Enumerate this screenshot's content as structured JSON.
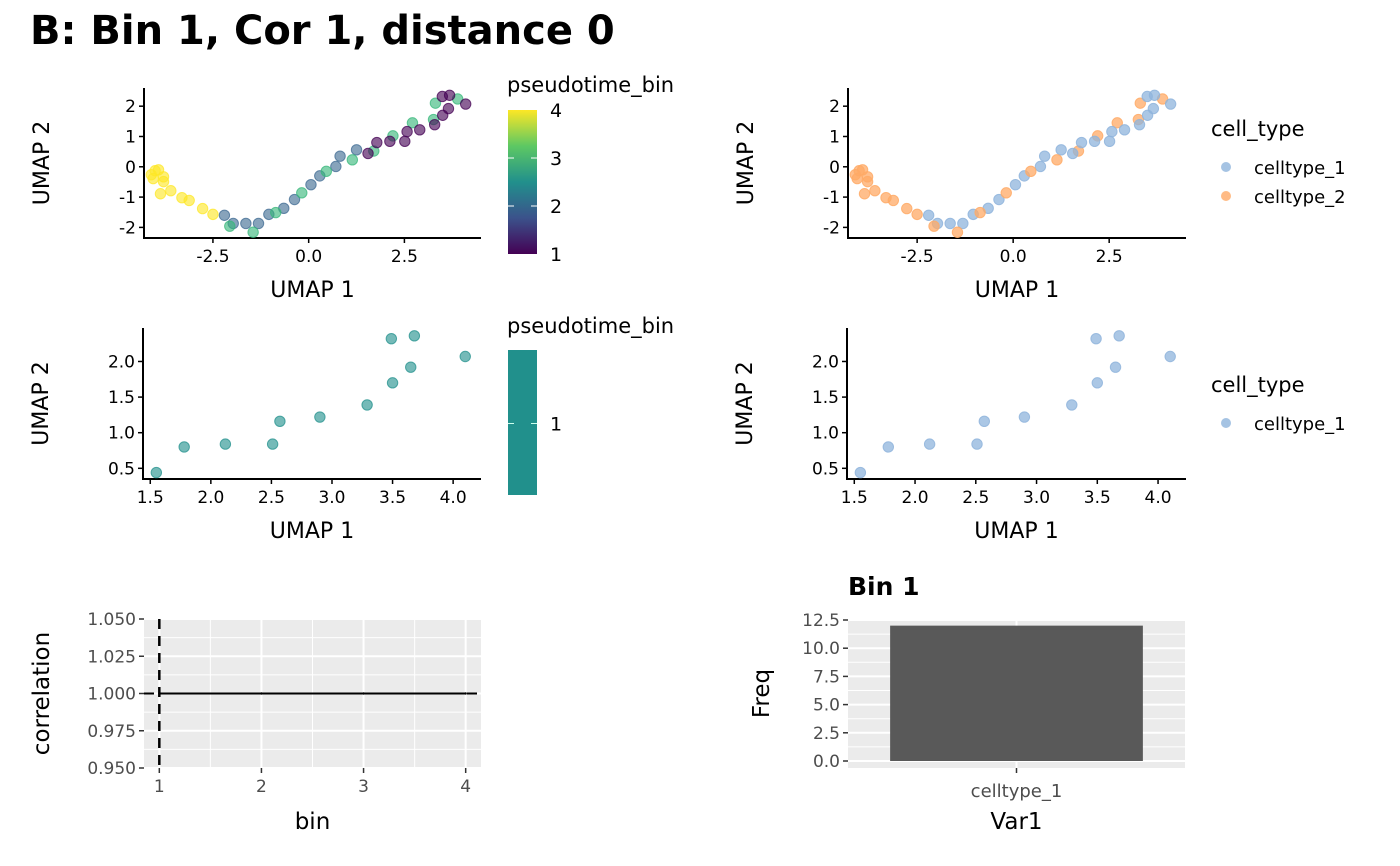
{
  "page_title": "B: Bin 1, Cor 1, distance 0",
  "colors": {
    "viridis": [
      "#440154",
      "#3B528B",
      "#21908C",
      "#5DC863",
      "#FDE725"
    ],
    "bin_colors": {
      "1": "#440154",
      "2": "#3E6A92",
      "3": "#35B779",
      "4": "#FDE725"
    },
    "celltype_1": "#8FB4DC",
    "celltype_2": "#FFAA66",
    "single_bin_fill": "#21908C",
    "bar_fill": "#595959",
    "panel_bg": "#EBEBEB"
  },
  "chart_data": [
    {
      "id": "umap-pseudotime-all",
      "type": "scatter",
      "title": "",
      "xlabel": "UMAP 1",
      "ylabel": "UMAP 2",
      "xlim": [
        -4.3,
        4.5
      ],
      "ylim": [
        -2.35,
        2.6
      ],
      "xticks": [
        -2.5,
        0.0,
        2.5
      ],
      "xtick_labels": [
        "-2.5",
        "0.0",
        "2.5"
      ],
      "yticks": [
        -2,
        -1,
        0,
        1,
        2
      ],
      "ytick_labels": [
        "-2",
        "-1",
        "0",
        "1",
        "2"
      ],
      "grid": false,
      "color_by": "pseudotime_bin",
      "legend": {
        "title": "pseudotime_bin",
        "type": "colorbar",
        "range": [
          1,
          4
        ],
        "ticks": [
          "1",
          "2",
          "3",
          "4"
        ],
        "placement": "right"
      },
      "points": [
        {
          "x": -4.11,
          "y": -0.26,
          "bin": 4,
          "cell_type": "celltype_2"
        },
        {
          "x": -4.01,
          "y": -0.13,
          "bin": 4,
          "cell_type": "celltype_2"
        },
        {
          "x": -3.92,
          "y": -0.1,
          "bin": 4,
          "cell_type": "celltype_2"
        },
        {
          "x": -4.06,
          "y": -0.39,
          "bin": 4,
          "cell_type": "celltype_2"
        },
        {
          "x": -3.79,
          "y": -0.33,
          "bin": 4,
          "cell_type": "celltype_2"
        },
        {
          "x": -3.79,
          "y": -0.49,
          "bin": 4,
          "cell_type": "celltype_2"
        },
        {
          "x": -3.87,
          "y": -0.89,
          "bin": 4,
          "cell_type": "celltype_2"
        },
        {
          "x": -3.6,
          "y": -0.79,
          "bin": 4,
          "cell_type": "celltype_2"
        },
        {
          "x": -3.31,
          "y": -1.02,
          "bin": 4,
          "cell_type": "celltype_2"
        },
        {
          "x": -3.12,
          "y": -1.11,
          "bin": 4,
          "cell_type": "celltype_2"
        },
        {
          "x": -2.77,
          "y": -1.38,
          "bin": 4,
          "cell_type": "celltype_2"
        },
        {
          "x": -2.5,
          "y": -1.57,
          "bin": 4,
          "cell_type": "celltype_2"
        },
        {
          "x": -2.2,
          "y": -1.6,
          "bin": 2,
          "cell_type": "celltype_1"
        },
        {
          "x": -1.97,
          "y": -1.87,
          "bin": 2,
          "cell_type": "celltype_1"
        },
        {
          "x": -1.64,
          "y": -1.87,
          "bin": 2,
          "cell_type": "celltype_1"
        },
        {
          "x": -1.31,
          "y": -1.87,
          "bin": 2,
          "cell_type": "celltype_1"
        },
        {
          "x": -1.04,
          "y": -1.57,
          "bin": 2,
          "cell_type": "celltype_1"
        },
        {
          "x": -0.65,
          "y": -1.37,
          "bin": 2,
          "cell_type": "celltype_1"
        },
        {
          "x": -0.37,
          "y": -1.08,
          "bin": 2,
          "cell_type": "celltype_1"
        },
        {
          "x": 0.06,
          "y": -0.59,
          "bin": 2,
          "cell_type": "celltype_1"
        },
        {
          "x": 0.29,
          "y": -0.3,
          "bin": 2,
          "cell_type": "celltype_1"
        },
        {
          "x": 0.71,
          "y": 0.01,
          "bin": 2,
          "cell_type": "celltype_1"
        },
        {
          "x": 0.82,
          "y": 0.35,
          "bin": 2,
          "cell_type": "celltype_1"
        },
        {
          "x": 1.25,
          "y": 0.56,
          "bin": 2,
          "cell_type": "celltype_1"
        },
        {
          "x": -2.06,
          "y": -1.96,
          "bin": 3,
          "cell_type": "celltype_2"
        },
        {
          "x": -1.45,
          "y": -2.16,
          "bin": 3,
          "cell_type": "celltype_2"
        },
        {
          "x": -0.86,
          "y": -1.51,
          "bin": 3,
          "cell_type": "celltype_2"
        },
        {
          "x": -0.18,
          "y": -0.86,
          "bin": 3,
          "cell_type": "celltype_2"
        },
        {
          "x": 0.46,
          "y": -0.15,
          "bin": 3,
          "cell_type": "celltype_2"
        },
        {
          "x": 1.14,
          "y": 0.23,
          "bin": 3,
          "cell_type": "celltype_2"
        },
        {
          "x": 1.7,
          "y": 0.52,
          "bin": 3,
          "cell_type": "celltype_2"
        },
        {
          "x": 2.2,
          "y": 1.02,
          "bin": 3,
          "cell_type": "celltype_2"
        },
        {
          "x": 2.71,
          "y": 1.45,
          "bin": 3,
          "cell_type": "celltype_2"
        },
        {
          "x": 3.26,
          "y": 1.56,
          "bin": 3,
          "cell_type": "celltype_2"
        },
        {
          "x": 3.31,
          "y": 2.1,
          "bin": 3,
          "cell_type": "celltype_2"
        },
        {
          "x": 3.89,
          "y": 2.24,
          "bin": 3,
          "cell_type": "celltype_2"
        },
        {
          "x": 1.55,
          "y": 0.44,
          "bin": 1,
          "cell_type": "celltype_1"
        },
        {
          "x": 1.78,
          "y": 0.8,
          "bin": 1,
          "cell_type": "celltype_1"
        },
        {
          "x": 2.12,
          "y": 0.84,
          "bin": 1,
          "cell_type": "celltype_1"
        },
        {
          "x": 2.51,
          "y": 0.84,
          "bin": 1,
          "cell_type": "celltype_1"
        },
        {
          "x": 2.57,
          "y": 1.16,
          "bin": 1,
          "cell_type": "celltype_1"
        },
        {
          "x": 2.9,
          "y": 1.22,
          "bin": 1,
          "cell_type": "celltype_1"
        },
        {
          "x": 3.29,
          "y": 1.39,
          "bin": 1,
          "cell_type": "celltype_1"
        },
        {
          "x": 3.5,
          "y": 1.7,
          "bin": 1,
          "cell_type": "celltype_1"
        },
        {
          "x": 3.49,
          "y": 2.32,
          "bin": 1,
          "cell_type": "celltype_1"
        },
        {
          "x": 3.65,
          "y": 1.92,
          "bin": 1,
          "cell_type": "celltype_1"
        },
        {
          "x": 3.68,
          "y": 2.36,
          "bin": 1,
          "cell_type": "celltype_1"
        },
        {
          "x": 4.1,
          "y": 2.07,
          "bin": 1,
          "cell_type": "celltype_1"
        }
      ]
    },
    {
      "id": "umap-celltype-all",
      "type": "scatter",
      "title": "",
      "xlabel": "UMAP 1",
      "ylabel": "UMAP 2",
      "xlim": [
        -4.3,
        4.5
      ],
      "ylim": [
        -2.35,
        2.6
      ],
      "xticks": [
        -2.5,
        0.0,
        2.5
      ],
      "xtick_labels": [
        "-2.5",
        "0.0",
        "2.5"
      ],
      "yticks": [
        -2,
        -1,
        0,
        1,
        2
      ],
      "ytick_labels": [
        "-2",
        "-1",
        "0",
        "1",
        "2"
      ],
      "grid": false,
      "color_by": "cell_type",
      "source_points": "umap-pseudotime-all",
      "legend": {
        "title": "cell_type",
        "entries": [
          "celltype_1",
          "celltype_2"
        ],
        "placement": "right"
      }
    },
    {
      "id": "umap-pseudotime-bin1",
      "type": "scatter",
      "title": "",
      "xlabel": "UMAP 1",
      "ylabel": "UMAP 2",
      "xlim": [
        1.44,
        4.23
      ],
      "ylim": [
        0.35,
        2.47
      ],
      "xticks": [
        1.5,
        2.0,
        2.5,
        3.0,
        3.5,
        4.0
      ],
      "xtick_labels": [
        "1.5",
        "2.0",
        "2.5",
        "3.0",
        "3.5",
        "4.0"
      ],
      "yticks": [
        0.5,
        1.0,
        1.5,
        2.0
      ],
      "ytick_labels": [
        "0.5",
        "1.0",
        "1.5",
        "2.0"
      ],
      "grid": false,
      "color_by": "pseudotime_bin",
      "legend": {
        "title": "pseudotime_bin",
        "type": "colorbar",
        "range": [
          1,
          1
        ],
        "ticks": [
          "1"
        ],
        "placement": "right"
      },
      "points": [
        {
          "x": 1.55,
          "y": 0.44
        },
        {
          "x": 1.78,
          "y": 0.8
        },
        {
          "x": 2.12,
          "y": 0.84
        },
        {
          "x": 2.51,
          "y": 0.84
        },
        {
          "x": 2.57,
          "y": 1.16
        },
        {
          "x": 2.9,
          "y": 1.22
        },
        {
          "x": 3.29,
          "y": 1.39
        },
        {
          "x": 3.5,
          "y": 1.7
        },
        {
          "x": 3.49,
          "y": 2.32
        },
        {
          "x": 3.65,
          "y": 1.92
        },
        {
          "x": 3.68,
          "y": 2.36
        },
        {
          "x": 4.1,
          "y": 2.07
        }
      ]
    },
    {
      "id": "umap-celltype-bin1",
      "type": "scatter",
      "title": "",
      "xlabel": "UMAP 1",
      "ylabel": "UMAP 2",
      "xlim": [
        1.44,
        4.23
      ],
      "ylim": [
        0.35,
        2.47
      ],
      "xticks": [
        1.5,
        2.0,
        2.5,
        3.0,
        3.5,
        4.0
      ],
      "xtick_labels": [
        "1.5",
        "2.0",
        "2.5",
        "3.0",
        "3.5",
        "4.0"
      ],
      "yticks": [
        0.5,
        1.0,
        1.5,
        2.0
      ],
      "ytick_labels": [
        "0.5",
        "1.0",
        "1.5",
        "2.0"
      ],
      "grid": false,
      "color_by": "cell_type",
      "source_points": "umap-pseudotime-bin1",
      "legend": {
        "title": "cell_type",
        "entries": [
          "celltype_1"
        ],
        "placement": "right"
      }
    },
    {
      "id": "correlation-by-bin",
      "type": "line",
      "title": "",
      "xlabel": "bin",
      "ylabel": "correlation",
      "xlim": [
        0.85,
        4.15
      ],
      "ylim": [
        0.95,
        1.05
      ],
      "xticks": [
        1,
        2,
        3,
        4
      ],
      "xtick_labels": [
        "1",
        "2",
        "3",
        "4"
      ],
      "yticks": [
        0.95,
        0.975,
        1.0,
        1.025,
        1.05
      ],
      "ytick_labels": [
        "0.950",
        "0.975",
        "1.000",
        "1.025",
        "1.050"
      ],
      "grid": true,
      "series": [
        {
          "name": "correlation",
          "x": [
            1,
            2,
            3,
            4
          ],
          "y": [
            1.0,
            1.0,
            1.0,
            1.0
          ],
          "style": "solid"
        }
      ],
      "annotations": [
        {
          "type": "vline",
          "x": 1,
          "style": "dashed"
        },
        {
          "type": "hline",
          "y": 1.0,
          "style": "dashed"
        }
      ]
    },
    {
      "id": "celltype-frequency-bin1",
      "type": "bar",
      "title": "Bin 1",
      "xlabel": "Var1",
      "ylabel": "Freq",
      "categories": [
        "celltype_1"
      ],
      "values": [
        12
      ],
      "ylim": [
        0,
        12.5
      ],
      "yticks": [
        0,
        2.5,
        5,
        7.5,
        10,
        12.5
      ],
      "ytick_labels": [
        "0.0",
        "2.5",
        "5.0",
        "7.5",
        "10.0",
        "12.5"
      ],
      "grid": true
    }
  ]
}
